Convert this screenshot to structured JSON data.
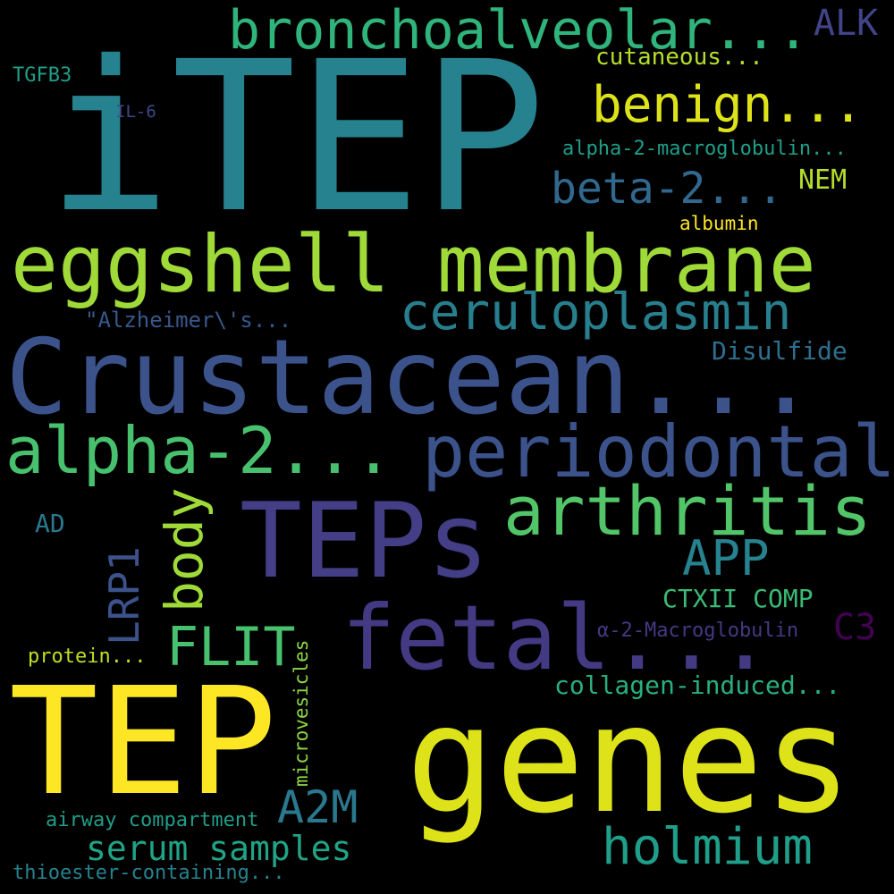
{
  "words": {
    "itep": "iTEP",
    "bronchoalveolar": "bronchoalveolar...",
    "alk": "ALK",
    "cutaneous": "cutaneous...",
    "tgfb3": "TGFB3",
    "il6": "IL-6",
    "alpha2_macroglobulin_long": "alpha-2-macroglobulin...",
    "benign": "benign...",
    "beta2": "beta-2...",
    "nem": "NEM",
    "albumin": "albumin",
    "eggshell": "eggshell membrane",
    "ceruloplasmin": "ceruloplasmin",
    "alzheimers": "\"Alzheimer\\'s...",
    "disulfide": "Disulfide",
    "crustacean": "Crustacean...",
    "alpha2": "alpha-2...",
    "periodontal": "periodontal",
    "arthritis": "arthritis",
    "teps": "TEPs",
    "ad": "AD",
    "app": "APP",
    "body": "body",
    "lrp1": "LRP1",
    "ctxii_comp": "CTXII COMP",
    "fetal": "fetal...",
    "c3": "C3",
    "flit": "FLIT",
    "a2_macroglobulin": "α-2-Macroglobulin",
    "protein": "protein...",
    "collagen": "collagen-induced...",
    "tep": "TEP",
    "genes": "genes",
    "microvesicles": "microvesicles",
    "a2m": "A2M",
    "airway": "airway compartment",
    "holmium": "holmium",
    "serum": "serum samples",
    "thioester": "thioester-containing..."
  },
  "colors": {
    "background": "#000000",
    "palette": [
      "#440154",
      "#414487",
      "#2a788e",
      "#22a884",
      "#7ad151",
      "#fde725"
    ]
  }
}
